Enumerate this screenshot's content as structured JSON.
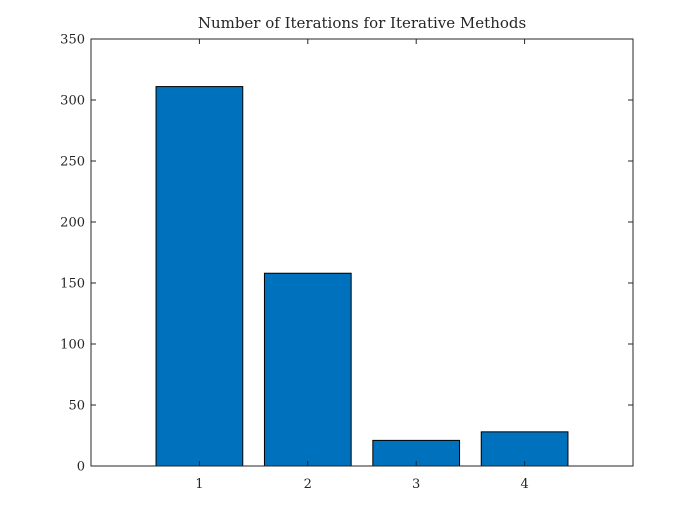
{
  "chart_data": {
    "type": "bar",
    "title": "Number of Iterations for Iterative Methods",
    "xlabel": "",
    "ylabel": "",
    "categories": [
      "1",
      "2",
      "3",
      "4"
    ],
    "values": [
      311,
      158,
      21,
      28
    ],
    "xlim": [
      0,
      5
    ],
    "ylim": [
      0,
      350
    ],
    "yticks": [
      0,
      50,
      100,
      150,
      200,
      250,
      300,
      350
    ],
    "xticks": [
      "1",
      "2",
      "3",
      "4"
    ],
    "bar_color": "#0072BD",
    "bar_edge_color": "#000000",
    "grid": false,
    "legend": null
  }
}
